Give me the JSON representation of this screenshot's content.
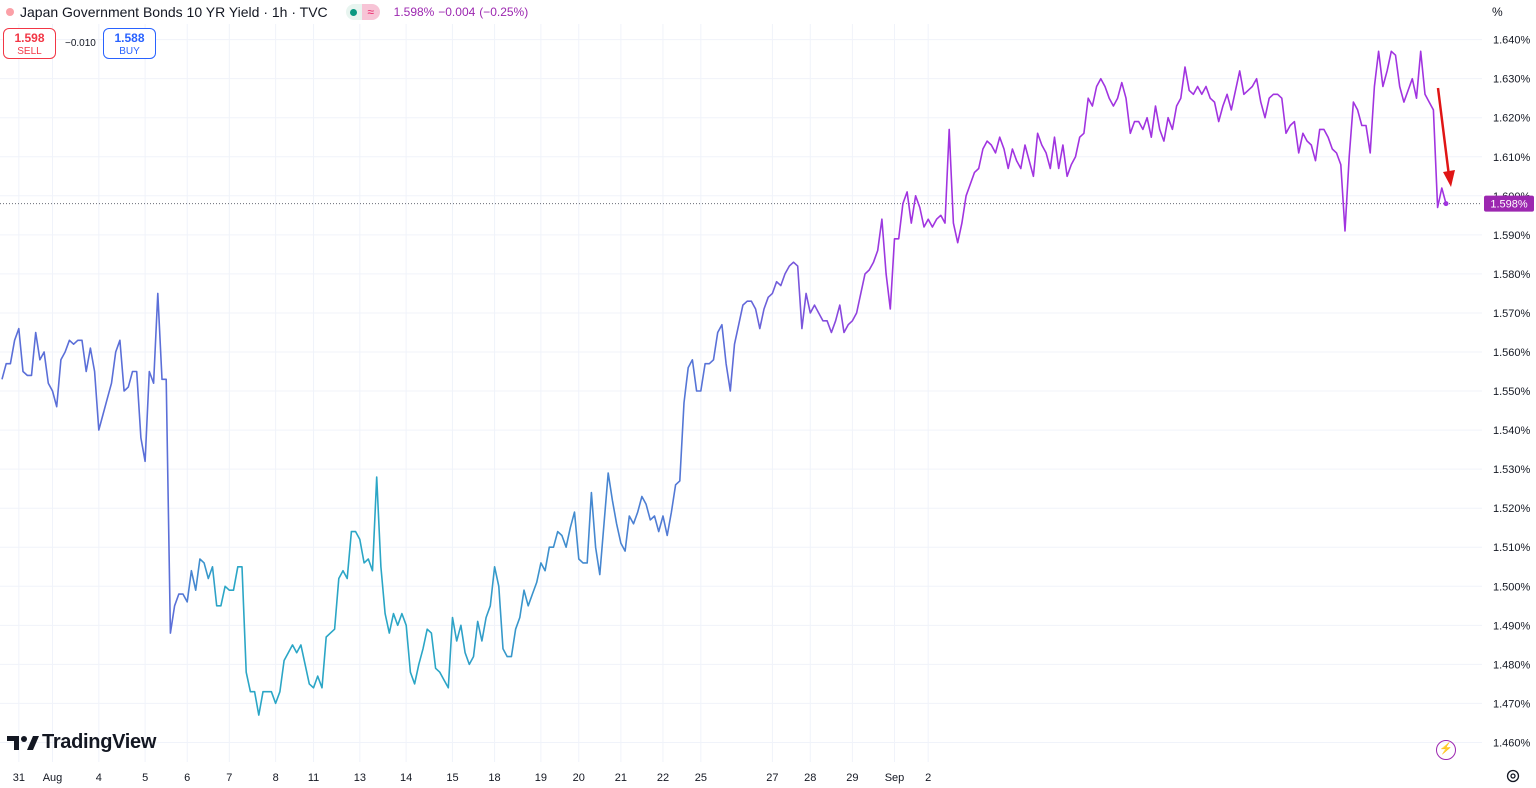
{
  "header": {
    "title": "Japan Government Bonds 10 YR Yield · 1h · TVC",
    "pill_icon": "≈",
    "last": "1.598%",
    "change": "−0.004",
    "change_pct": "(−0.25%)",
    "unit": "%"
  },
  "trade": {
    "sell_value": "1.598",
    "sell_label": "SELL",
    "spread": "−0.010",
    "buy_value": "1.588",
    "buy_label": "BUY"
  },
  "branding": {
    "logo_text": "TradingView"
  },
  "colors": {
    "series_start": "#2ba6c6",
    "series_mid": "#5b6fd8",
    "series_end": "#a134e0",
    "price_badge": "#9c27b0",
    "arrow": "#e01515",
    "grid": "#f0f3fa",
    "sell": "#f23645",
    "buy": "#2962ff"
  },
  "chart_data": {
    "type": "line",
    "title": "Japan Government Bonds 10 YR Yield · 1h · TVC",
    "ylabel": "%",
    "ylim": [
      1.455,
      1.644
    ],
    "yticks": [
      1.46,
      1.47,
      1.48,
      1.49,
      1.5,
      1.51,
      1.52,
      1.53,
      1.54,
      1.55,
      1.56,
      1.57,
      1.58,
      1.59,
      1.6,
      1.61,
      1.62,
      1.63,
      1.64
    ],
    "ytick_labels": [
      "1.460%",
      "1.470%",
      "1.480%",
      "1.490%",
      "1.500%",
      "1.510%",
      "1.520%",
      "1.530%",
      "1.540%",
      "1.550%",
      "1.560%",
      "1.570%",
      "1.580%",
      "1.590%",
      "1.600%",
      "1.610%",
      "1.620%",
      "1.630%",
      "1.640%"
    ],
    "last_value": 1.598,
    "last_value_label": "1.598%",
    "xtick_labels": [
      "31",
      "Aug",
      "4",
      "5",
      "6",
      "7",
      "8",
      "11",
      "13",
      "14",
      "15",
      "18",
      "19",
      "20",
      "21",
      "22",
      "25",
      "27",
      "28",
      "29",
      "Sep",
      "2"
    ],
    "xtick_index": [
      4,
      12,
      23,
      34,
      44,
      54,
      65,
      74,
      85,
      96,
      107,
      117,
      128,
      137,
      147,
      157,
      166,
      183,
      192,
      202,
      212,
      220
    ],
    "series": [
      {
        "name": "Japan Government Bonds 10 YR Yield",
        "values": [
          1.553,
          1.557,
          1.557,
          1.563,
          1.566,
          1.555,
          1.554,
          1.554,
          1.565,
          1.558,
          1.56,
          1.552,
          1.55,
          1.546,
          1.558,
          1.56,
          1.563,
          1.562,
          1.563,
          1.563,
          1.555,
          1.561,
          1.555,
          1.54,
          1.544,
          1.548,
          1.552,
          1.56,
          1.563,
          1.55,
          1.551,
          1.555,
          1.555,
          1.538,
          1.532,
          1.555,
          1.552,
          1.575,
          1.553,
          1.553,
          1.488,
          1.495,
          1.498,
          1.498,
          1.496,
          1.504,
          1.499,
          1.507,
          1.506,
          1.502,
          1.505,
          1.495,
          1.495,
          1.5,
          1.499,
          1.499,
          1.505,
          1.505,
          1.478,
          1.473,
          1.473,
          1.467,
          1.473,
          1.473,
          1.473,
          1.47,
          1.473,
          1.481,
          1.483,
          1.485,
          1.483,
          1.485,
          1.48,
          1.475,
          1.474,
          1.477,
          1.474,
          1.487,
          1.488,
          1.489,
          1.502,
          1.504,
          1.502,
          1.514,
          1.514,
          1.512,
          1.506,
          1.507,
          1.504,
          1.528,
          1.505,
          1.493,
          1.488,
          1.493,
          1.49,
          1.493,
          1.49,
          1.478,
          1.475,
          1.48,
          1.484,
          1.489,
          1.488,
          1.479,
          1.478,
          1.476,
          1.474,
          1.492,
          1.486,
          1.49,
          1.483,
          1.48,
          1.482,
          1.491,
          1.486,
          1.492,
          1.495,
          1.505,
          1.5,
          1.484,
          1.482,
          1.482,
          1.489,
          1.492,
          1.499,
          1.495,
          1.498,
          1.501,
          1.506,
          1.504,
          1.51,
          1.51,
          1.514,
          1.513,
          1.51,
          1.515,
          1.519,
          1.507,
          1.506,
          1.506,
          1.524,
          1.51,
          1.503,
          1.516,
          1.529,
          1.522,
          1.516,
          1.511,
          1.509,
          1.518,
          1.516,
          1.519,
          1.523,
          1.521,
          1.517,
          1.518,
          1.514,
          1.518,
          1.513,
          1.519,
          1.526,
          1.527,
          1.547,
          1.556,
          1.558,
          1.55,
          1.55,
          1.557,
          1.557,
          1.558,
          1.565,
          1.567,
          1.557,
          1.55,
          1.562,
          1.567,
          1.572,
          1.573,
          1.573,
          1.571,
          1.566,
          1.571,
          1.574,
          1.575,
          1.578,
          1.577,
          1.58,
          1.582,
          1.583,
          1.582,
          1.566,
          1.575,
          1.57,
          1.572,
          1.57,
          1.568,
          1.568,
          1.565,
          1.568,
          1.572,
          1.565,
          1.567,
          1.568,
          1.57,
          1.575,
          1.58,
          1.581,
          1.583,
          1.586,
          1.594,
          1.58,
          1.571,
          1.589,
          1.589,
          1.598,
          1.601,
          1.593,
          1.6,
          1.597,
          1.592,
          1.594,
          1.592,
          1.594,
          1.595,
          1.593,
          1.617,
          1.593,
          1.588,
          1.593,
          1.6,
          1.603,
          1.606,
          1.607,
          1.612,
          1.614,
          1.613,
          1.611,
          1.615,
          1.612,
          1.607,
          1.612,
          1.609,
          1.607,
          1.613,
          1.609,
          1.605,
          1.616,
          1.613,
          1.611,
          1.607,
          1.615,
          1.607,
          1.613,
          1.605,
          1.608,
          1.61,
          1.615,
          1.616,
          1.625,
          1.623,
          1.628,
          1.63,
          1.628,
          1.625,
          1.623,
          1.625,
          1.629,
          1.625,
          1.616,
          1.619,
          1.619,
          1.617,
          1.62,
          1.615,
          1.623,
          1.617,
          1.614,
          1.62,
          1.617,
          1.623,
          1.625,
          1.633,
          1.627,
          1.626,
          1.628,
          1.626,
          1.628,
          1.625,
          1.624,
          1.619,
          1.623,
          1.626,
          1.622,
          1.627,
          1.632,
          1.626,
          1.627,
          1.628,
          1.63,
          1.624,
          1.62,
          1.625,
          1.626,
          1.626,
          1.625,
          1.616,
          1.618,
          1.619,
          1.611,
          1.616,
          1.614,
          1.613,
          1.609,
          1.617,
          1.617,
          1.615,
          1.612,
          1.611,
          1.608,
          1.591,
          1.61,
          1.624,
          1.622,
          1.618,
          1.618,
          1.611,
          1.628,
          1.637,
          1.628,
          1.632,
          1.637,
          1.636,
          1.628,
          1.624,
          1.627,
          1.63,
          1.625,
          1.637,
          1.626,
          1.624,
          1.622,
          1.597,
          1.602,
          1.598
        ]
      }
    ],
    "annotation": "red downward arrow near last bars"
  }
}
